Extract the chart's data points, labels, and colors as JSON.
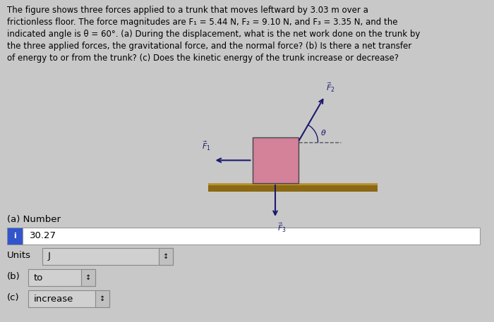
{
  "background_color": "#c8c8c8",
  "text_color": "#000000",
  "title_text": "The figure shows three forces applied to a trunk that moves leftward by 3.03 m over a\nfrictionless floor. The force magnitudes are F₁ = 5.44 N, F₂ = 9.10 N, and F₃ = 3.35 N, and the\nindicated angle is θ = 60°. (a) During the displacement, what is the net work done on the trunk by\nthe three applied forces, the gravitational force, and the normal force? (b) Is there a net transfer\nof energy to or from the trunk? (c) Does the kinetic energy of the trunk increase or decrease?",
  "answer_a_label": "(a) Number",
  "answer_a_value": "30.27",
  "answer_a_units": "J",
  "answer_b_label": "(b)",
  "answer_b_value": "to",
  "answer_c_label": "(c)",
  "answer_c_value": "increase",
  "units_label": "Units",
  "trunk_color": "#d4819a",
  "floor_color": "#8B6914",
  "floor_top_color": "#b89030",
  "i_box_color": "#3355cc",
  "answer_box_bg": "#ffffff",
  "answer_box_border": "#aaaaaa",
  "units_box_bg": "#d0d0d0",
  "spinner_bg": "#c0c0c0"
}
